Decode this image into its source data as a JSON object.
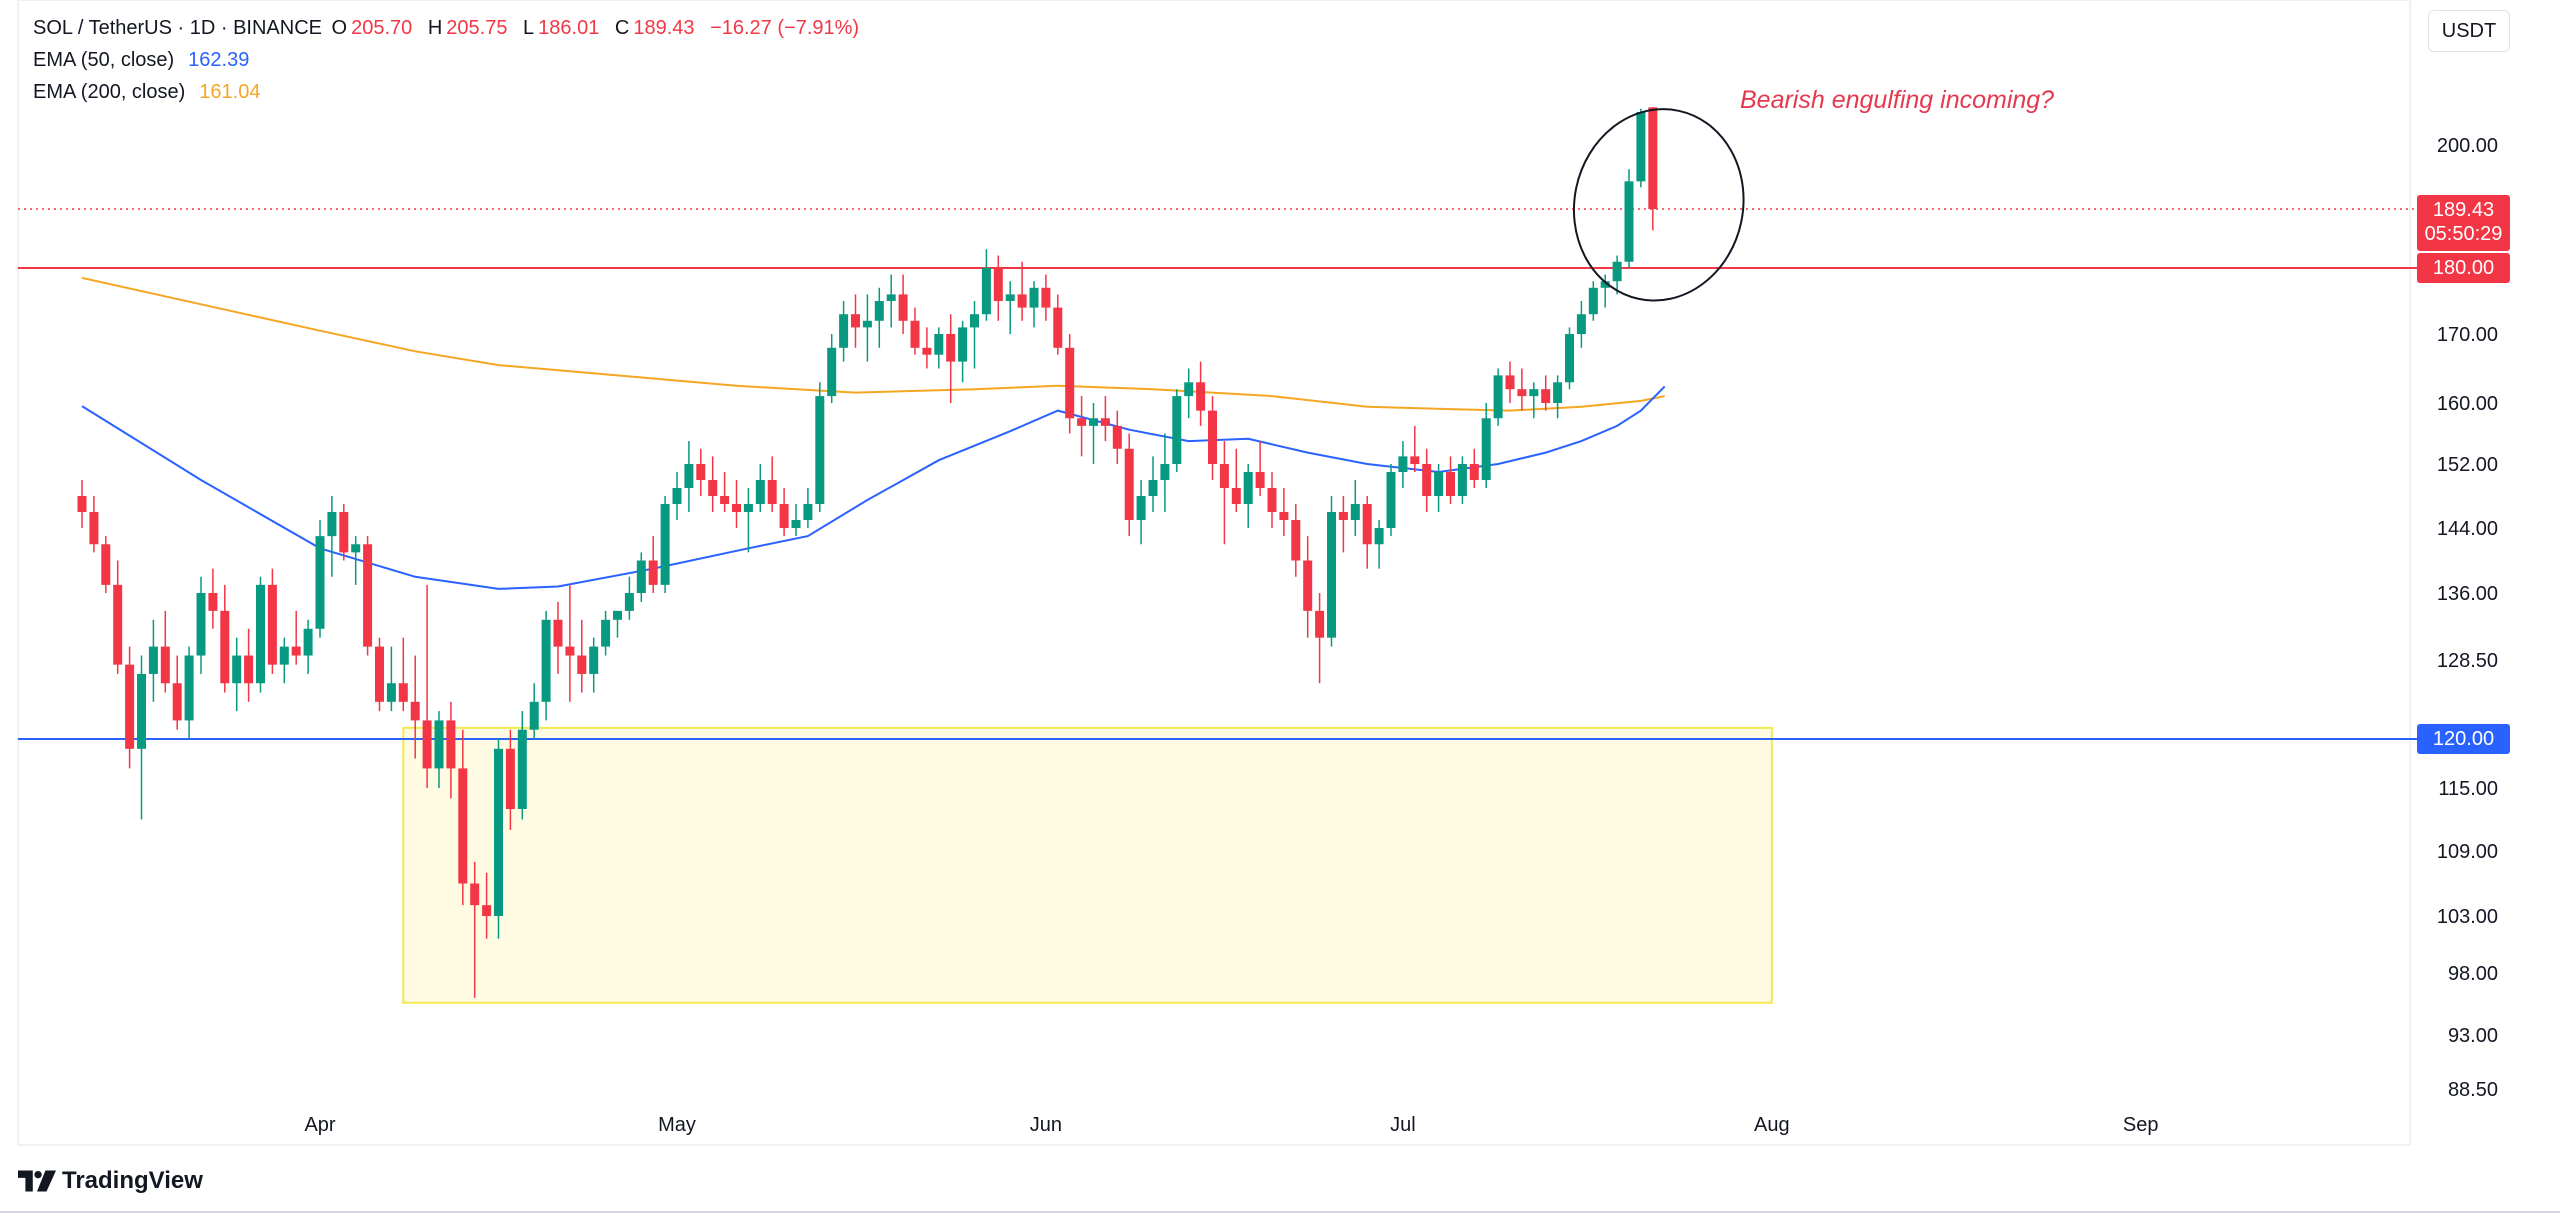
{
  "legend": {
    "symbol": "SOL / TetherUS · 1D · BINANCE",
    "o_label": "O",
    "o_value": "205.70",
    "h_label": "H",
    "h_value": "205.75",
    "l_label": "L",
    "l_value": "186.01",
    "c_label": "C",
    "c_value": "189.43",
    "change": "−16.27 (−7.91%)",
    "ema50_label": "EMA (50, close)",
    "ema50_value": "162.39",
    "ema200_label": "EMA (200, close)",
    "ema200_value": "161.04"
  },
  "currency_button": "USDT",
  "annotation_text": "Bearish engulfing incoming?",
  "price_tags": {
    "last_price": "189.43",
    "countdown": "05:50:29",
    "resistance": "180.00",
    "support": "120.00"
  },
  "brand": "TradingView",
  "colors": {
    "up": "#089981",
    "down": "#f23645",
    "ema50": "#2962ff",
    "ema200": "#f5a623",
    "annotation": "#e5394f",
    "zone_fill": "#fffbe3",
    "zone_border": "#f2e94e"
  },
  "chart_data": {
    "type": "candlestick",
    "symbol": "SOL / TetherUS",
    "interval": "1D",
    "exchange": "BINANCE",
    "y_axis_ticks": [
      200.0,
      189.43,
      180.0,
      170.0,
      160.0,
      152.0,
      144.0,
      136.0,
      128.5,
      120.0,
      115.0,
      109.0,
      103.0,
      98.0,
      93.0,
      88.5
    ],
    "x_axis_ticks": [
      "Apr",
      "May",
      "Jun",
      "Jul",
      "Aug",
      "Sep"
    ],
    "x_range_days": [
      -20,
      162
    ],
    "horizontal_lines": [
      {
        "price": 180.0,
        "color": "#f23645"
      },
      {
        "price": 120.0,
        "color": "#2962ff"
      }
    ],
    "last_price_line": 189.43,
    "demand_zone": {
      "x_start_day": 7,
      "x_end_day": 122,
      "price_top": 121.2,
      "price_bottom": 95.6
    },
    "highlight_ellipse": {
      "center_day": 112.5,
      "center_price": 195.0,
      "radius_days": 6,
      "price_top": 205.5,
      "price_bottom": 175.0
    },
    "ema_50": [
      [
        -20,
        159.6
      ],
      [
        -10,
        150.0
      ],
      [
        0,
        141.5
      ],
      [
        8,
        138.0
      ],
      [
        15,
        136.5
      ],
      [
        20,
        136.8
      ],
      [
        28,
        139.0
      ],
      [
        36,
        141.5
      ],
      [
        41,
        143.0
      ],
      [
        46,
        147.5
      ],
      [
        52,
        152.5
      ],
      [
        58,
        156.3
      ],
      [
        62,
        159.0
      ],
      [
        68,
        156.5
      ],
      [
        73,
        155.0
      ],
      [
        78,
        155.3
      ],
      [
        83,
        153.5
      ],
      [
        88,
        152.0
      ],
      [
        94,
        151.0
      ],
      [
        99,
        152.0
      ],
      [
        103,
        153.5
      ],
      [
        106,
        155.0
      ],
      [
        109,
        157.0
      ],
      [
        111,
        159.0
      ],
      [
        113,
        162.4
      ]
    ],
    "ema_200": [
      [
        -20,
        178.5
      ],
      [
        -10,
        174.5
      ],
      [
        0,
        170.5
      ],
      [
        8,
        167.5
      ],
      [
        15,
        165.5
      ],
      [
        25,
        164.0
      ],
      [
        35,
        162.5
      ],
      [
        45,
        161.5
      ],
      [
        55,
        162.0
      ],
      [
        62,
        162.5
      ],
      [
        70,
        162.0
      ],
      [
        80,
        161.0
      ],
      [
        88,
        159.5
      ],
      [
        95,
        159.2
      ],
      [
        100,
        159.0
      ],
      [
        106,
        159.5
      ],
      [
        111,
        160.3
      ],
      [
        113,
        161.0
      ]
    ],
    "candles": [
      {
        "day": -20,
        "o": 148,
        "h": 150,
        "l": 144,
        "c": 146
      },
      {
        "day": -19,
        "o": 146,
        "h": 148,
        "l": 141,
        "c": 142
      },
      {
        "day": -18,
        "o": 142,
        "h": 143,
        "l": 136,
        "c": 137
      },
      {
        "day": -17,
        "o": 137,
        "h": 140,
        "l": 127,
        "c": 128
      },
      {
        "day": -16,
        "o": 128,
        "h": 130,
        "l": 117,
        "c": 119
      },
      {
        "day": -15,
        "o": 119,
        "h": 129,
        "l": 112,
        "c": 127
      },
      {
        "day": -14,
        "o": 127,
        "h": 133,
        "l": 124,
        "c": 130
      },
      {
        "day": -13,
        "o": 130,
        "h": 134,
        "l": 125,
        "c": 126
      },
      {
        "day": -12,
        "o": 126,
        "h": 129,
        "l": 121,
        "c": 122
      },
      {
        "day": -11,
        "o": 122,
        "h": 130,
        "l": 120,
        "c": 129
      },
      {
        "day": -10,
        "o": 129,
        "h": 138,
        "l": 127,
        "c": 136
      },
      {
        "day": -9,
        "o": 136,
        "h": 139,
        "l": 132,
        "c": 134
      },
      {
        "day": -8,
        "o": 134,
        "h": 137,
        "l": 125,
        "c": 126
      },
      {
        "day": -7,
        "o": 126,
        "h": 131,
        "l": 123,
        "c": 129
      },
      {
        "day": -6,
        "o": 129,
        "h": 132,
        "l": 124,
        "c": 126
      },
      {
        "day": -5,
        "o": 126,
        "h": 138,
        "l": 125,
        "c": 137
      },
      {
        "day": -4,
        "o": 137,
        "h": 139,
        "l": 127,
        "c": 128
      },
      {
        "day": -3,
        "o": 128,
        "h": 131,
        "l": 126,
        "c": 130
      },
      {
        "day": -2,
        "o": 130,
        "h": 134,
        "l": 128,
        "c": 129
      },
      {
        "day": -1,
        "o": 129,
        "h": 133,
        "l": 127,
        "c": 132
      },
      {
        "day": 0,
        "o": 132,
        "h": 145,
        "l": 131,
        "c": 143
      },
      {
        "day": 1,
        "o": 143,
        "h": 148,
        "l": 138,
        "c": 146
      },
      {
        "day": 2,
        "o": 146,
        "h": 147,
        "l": 140,
        "c": 141
      },
      {
        "day": 3,
        "o": 141,
        "h": 143,
        "l": 137,
        "c": 142
      },
      {
        "day": 4,
        "o": 142,
        "h": 143,
        "l": 129,
        "c": 130
      },
      {
        "day": 5,
        "o": 130,
        "h": 131,
        "l": 123,
        "c": 124
      },
      {
        "day": 6,
        "o": 124,
        "h": 130,
        "l": 123,
        "c": 126
      },
      {
        "day": 7,
        "o": 126,
        "h": 131,
        "l": 123,
        "c": 124
      },
      {
        "day": 8,
        "o": 124,
        "h": 129,
        "l": 118,
        "c": 122
      },
      {
        "day": 9,
        "o": 122,
        "h": 137,
        "l": 115,
        "c": 117
      },
      {
        "day": 10,
        "o": 117,
        "h": 123,
        "l": 115,
        "c": 122
      },
      {
        "day": 11,
        "o": 122,
        "h": 124,
        "l": 114,
        "c": 117
      },
      {
        "day": 12,
        "o": 117,
        "h": 121,
        "l": 104,
        "c": 106
      },
      {
        "day": 13,
        "o": 106,
        "h": 108,
        "l": 96,
        "c": 104
      },
      {
        "day": 14,
        "o": 104,
        "h": 107,
        "l": 101,
        "c": 103
      },
      {
        "day": 15,
        "o": 103,
        "h": 120,
        "l": 101,
        "c": 119
      },
      {
        "day": 16,
        "o": 119,
        "h": 121,
        "l": 111,
        "c": 113
      },
      {
        "day": 17,
        "o": 113,
        "h": 123,
        "l": 112,
        "c": 121
      },
      {
        "day": 18,
        "o": 121,
        "h": 126,
        "l": 120,
        "c": 124
      },
      {
        "day": 19,
        "o": 124,
        "h": 134,
        "l": 122,
        "c": 133
      },
      {
        "day": 20,
        "o": 133,
        "h": 135,
        "l": 127,
        "c": 130
      },
      {
        "day": 21,
        "o": 130,
        "h": 137,
        "l": 124,
        "c": 129
      },
      {
        "day": 22,
        "o": 129,
        "h": 133,
        "l": 125,
        "c": 127
      },
      {
        "day": 23,
        "o": 127,
        "h": 131,
        "l": 125,
        "c": 130
      },
      {
        "day": 24,
        "o": 130,
        "h": 134,
        "l": 129,
        "c": 133
      },
      {
        "day": 25,
        "o": 133,
        "h": 134,
        "l": 131,
        "c": 134
      },
      {
        "day": 26,
        "o": 134,
        "h": 138,
        "l": 133,
        "c": 136
      },
      {
        "day": 27,
        "o": 136,
        "h": 141,
        "l": 135,
        "c": 140
      },
      {
        "day": 28,
        "o": 140,
        "h": 143,
        "l": 136,
        "c": 137
      },
      {
        "day": 29,
        "o": 137,
        "h": 148,
        "l": 136,
        "c": 147
      },
      {
        "day": 30,
        "o": 147,
        "h": 151,
        "l": 145,
        "c": 149
      },
      {
        "day": 31,
        "o": 149,
        "h": 155,
        "l": 146,
        "c": 152
      },
      {
        "day": 32,
        "o": 152,
        "h": 154,
        "l": 148,
        "c": 150
      },
      {
        "day": 33,
        "o": 150,
        "h": 153,
        "l": 146,
        "c": 148
      },
      {
        "day": 34,
        "o": 148,
        "h": 151,
        "l": 146,
        "c": 147
      },
      {
        "day": 35,
        "o": 147,
        "h": 150,
        "l": 144,
        "c": 146
      },
      {
        "day": 36,
        "o": 146,
        "h": 149,
        "l": 141,
        "c": 147
      },
      {
        "day": 37,
        "o": 147,
        "h": 152,
        "l": 146,
        "c": 150
      },
      {
        "day": 38,
        "o": 150,
        "h": 153,
        "l": 146,
        "c": 147
      },
      {
        "day": 39,
        "o": 147,
        "h": 149,
        "l": 143,
        "c": 144
      },
      {
        "day": 40,
        "o": 144,
        "h": 147,
        "l": 143,
        "c": 145
      },
      {
        "day": 41,
        "o": 145,
        "h": 149,
        "l": 144,
        "c": 147
      },
      {
        "day": 42,
        "o": 147,
        "h": 163,
        "l": 146,
        "c": 161
      },
      {
        "day": 43,
        "o": 161,
        "h": 170,
        "l": 160,
        "c": 168
      },
      {
        "day": 44,
        "o": 168,
        "h": 175,
        "l": 166,
        "c": 173
      },
      {
        "day": 45,
        "o": 173,
        "h": 176,
        "l": 168,
        "c": 171
      },
      {
        "day": 46,
        "o": 171,
        "h": 176,
        "l": 166,
        "c": 172
      },
      {
        "day": 47,
        "o": 172,
        "h": 177,
        "l": 168,
        "c": 175
      },
      {
        "day": 48,
        "o": 175,
        "h": 179,
        "l": 171,
        "c": 176
      },
      {
        "day": 49,
        "o": 176,
        "h": 179,
        "l": 170,
        "c": 172
      },
      {
        "day": 50,
        "o": 172,
        "h": 174,
        "l": 167,
        "c": 168
      },
      {
        "day": 51,
        "o": 168,
        "h": 171,
        "l": 165,
        "c": 167
      },
      {
        "day": 52,
        "o": 167,
        "h": 171,
        "l": 165,
        "c": 170
      },
      {
        "day": 53,
        "o": 170,
        "h": 173,
        "l": 160,
        "c": 166
      },
      {
        "day": 54,
        "o": 166,
        "h": 172,
        "l": 163,
        "c": 171
      },
      {
        "day": 55,
        "o": 171,
        "h": 175,
        "l": 165,
        "c": 173
      },
      {
        "day": 56,
        "o": 173,
        "h": 183,
        "l": 172,
        "c": 180
      },
      {
        "day": 57,
        "o": 180,
        "h": 182,
        "l": 172,
        "c": 175
      },
      {
        "day": 58,
        "o": 175,
        "h": 178,
        "l": 170,
        "c": 176
      },
      {
        "day": 59,
        "o": 176,
        "h": 181,
        "l": 172,
        "c": 174
      },
      {
        "day": 60,
        "o": 174,
        "h": 178,
        "l": 171,
        "c": 177
      },
      {
        "day": 61,
        "o": 177,
        "h": 179,
        "l": 172,
        "c": 174
      },
      {
        "day": 62,
        "o": 174,
        "h": 176,
        "l": 167,
        "c": 168
      },
      {
        "day": 63,
        "o": 168,
        "h": 170,
        "l": 156,
        "c": 158
      },
      {
        "day": 64,
        "o": 158,
        "h": 161,
        "l": 153,
        "c": 157
      },
      {
        "day": 65,
        "o": 157,
        "h": 160,
        "l": 152,
        "c": 158
      },
      {
        "day": 66,
        "o": 158,
        "h": 161,
        "l": 155,
        "c": 157
      },
      {
        "day": 67,
        "o": 157,
        "h": 159,
        "l": 152,
        "c": 154
      },
      {
        "day": 68,
        "o": 154,
        "h": 156,
        "l": 143,
        "c": 145
      },
      {
        "day": 69,
        "o": 145,
        "h": 150,
        "l": 142,
        "c": 148
      },
      {
        "day": 70,
        "o": 148,
        "h": 153,
        "l": 146,
        "c": 150
      },
      {
        "day": 71,
        "o": 150,
        "h": 156,
        "l": 146,
        "c": 152
      },
      {
        "day": 72,
        "o": 152,
        "h": 162,
        "l": 151,
        "c": 161
      },
      {
        "day": 73,
        "o": 161,
        "h": 165,
        "l": 158,
        "c": 163
      },
      {
        "day": 74,
        "o": 163,
        "h": 166,
        "l": 157,
        "c": 159
      },
      {
        "day": 75,
        "o": 159,
        "h": 161,
        "l": 150,
        "c": 152
      },
      {
        "day": 76,
        "o": 152,
        "h": 155,
        "l": 142,
        "c": 149
      },
      {
        "day": 77,
        "o": 149,
        "h": 154,
        "l": 146,
        "c": 147
      },
      {
        "day": 78,
        "o": 147,
        "h": 152,
        "l": 144,
        "c": 151
      },
      {
        "day": 79,
        "o": 151,
        "h": 155,
        "l": 148,
        "c": 149
      },
      {
        "day": 80,
        "o": 149,
        "h": 151,
        "l": 144,
        "c": 146
      },
      {
        "day": 81,
        "o": 146,
        "h": 149,
        "l": 143,
        "c": 145
      },
      {
        "day": 82,
        "o": 145,
        "h": 147,
        "l": 138,
        "c": 140
      },
      {
        "day": 83,
        "o": 140,
        "h": 143,
        "l": 131,
        "c": 134
      },
      {
        "day": 84,
        "o": 134,
        "h": 136,
        "l": 126,
        "c": 131
      },
      {
        "day": 85,
        "o": 131,
        "h": 148,
        "l": 130,
        "c": 146
      },
      {
        "day": 86,
        "o": 146,
        "h": 148,
        "l": 141,
        "c": 145
      },
      {
        "day": 87,
        "o": 145,
        "h": 150,
        "l": 143,
        "c": 147
      },
      {
        "day": 88,
        "o": 147,
        "h": 148,
        "l": 139,
        "c": 142
      },
      {
        "day": 89,
        "o": 142,
        "h": 145,
        "l": 139,
        "c": 144
      },
      {
        "day": 90,
        "o": 144,
        "h": 152,
        "l": 143,
        "c": 151
      },
      {
        "day": 91,
        "o": 151,
        "h": 155,
        "l": 149,
        "c": 153
      },
      {
        "day": 92,
        "o": 153,
        "h": 157,
        "l": 151,
        "c": 152
      },
      {
        "day": 93,
        "o": 152,
        "h": 154,
        "l": 146,
        "c": 148
      },
      {
        "day": 94,
        "o": 148,
        "h": 152,
        "l": 146,
        "c": 151
      },
      {
        "day": 95,
        "o": 151,
        "h": 153,
        "l": 147,
        "c": 148
      },
      {
        "day": 96,
        "o": 148,
        "h": 153,
        "l": 147,
        "c": 152
      },
      {
        "day": 97,
        "o": 152,
        "h": 154,
        "l": 149,
        "c": 150
      },
      {
        "day": 98,
        "o": 150,
        "h": 160,
        "l": 149,
        "c": 158
      },
      {
        "day": 99,
        "o": 158,
        "h": 165,
        "l": 157,
        "c": 164
      },
      {
        "day": 100,
        "o": 164,
        "h": 166,
        "l": 160,
        "c": 162
      },
      {
        "day": 101,
        "o": 162,
        "h": 165,
        "l": 159,
        "c": 161
      },
      {
        "day": 102,
        "o": 161,
        "h": 163,
        "l": 158,
        "c": 162
      },
      {
        "day": 103,
        "o": 162,
        "h": 164,
        "l": 159,
        "c": 160
      },
      {
        "day": 104,
        "o": 160,
        "h": 164,
        "l": 158,
        "c": 163
      },
      {
        "day": 105,
        "o": 163,
        "h": 171,
        "l": 162,
        "c": 170
      },
      {
        "day": 106,
        "o": 170,
        "h": 175,
        "l": 168,
        "c": 173
      },
      {
        "day": 107,
        "o": 173,
        "h": 178,
        "l": 172,
        "c": 177
      },
      {
        "day": 108,
        "o": 177,
        "h": 179,
        "l": 174,
        "c": 178
      },
      {
        "day": 109,
        "o": 178,
        "h": 182,
        "l": 176,
        "c": 181
      },
      {
        "day": 110,
        "o": 181,
        "h": 196,
        "l": 180,
        "c": 194
      },
      {
        "day": 111,
        "o": 194,
        "h": 205.5,
        "l": 193,
        "c": 205
      },
      {
        "day": 112,
        "o": 205.7,
        "h": 205.75,
        "l": 186.01,
        "c": 189.43
      }
    ]
  }
}
